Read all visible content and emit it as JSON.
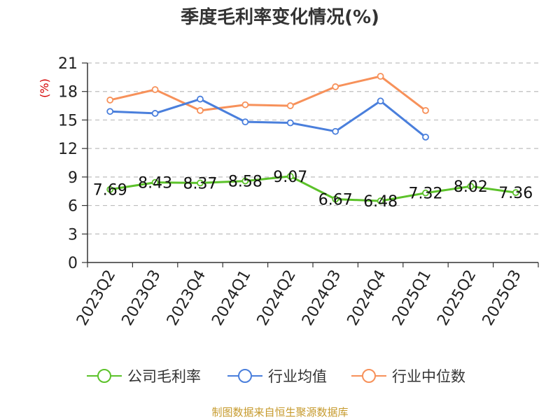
{
  "title": "季度毛利率变化情况(%)",
  "source": "制图数据来自恒生聚源数据库",
  "y_unit": "(%)",
  "chart_data": {
    "type": "line",
    "title": "季度毛利率变化情况(%)",
    "xlabel": "",
    "ylabel": "(%)",
    "ylim": [
      0,
      21
    ],
    "yticks": [
      0,
      3,
      6,
      9,
      12,
      15,
      18,
      21
    ],
    "grid": true,
    "legend_position": "bottom",
    "categories": [
      "2023Q2",
      "2023Q3",
      "2023Q4",
      "2024Q1",
      "2024Q2",
      "2024Q3",
      "2024Q4",
      "2025Q1",
      "2025Q2",
      "2025Q3"
    ],
    "series": [
      {
        "name": "公司毛利率",
        "color": "#5cc22a",
        "values": [
          7.69,
          8.43,
          8.37,
          8.58,
          9.07,
          6.67,
          6.48,
          7.32,
          8.02,
          7.36
        ],
        "labels": [
          "7.69",
          "8.43",
          "8.37",
          "8.58",
          "9.07",
          "6.67",
          "6.48",
          "7.32",
          "8.02",
          "7.36"
        ]
      },
      {
        "name": "行业均值",
        "color": "#4a7fdc",
        "values": [
          15.9,
          15.7,
          17.2,
          14.8,
          14.7,
          13.8,
          17.0,
          13.2,
          null,
          null
        ]
      },
      {
        "name": "行业中位数",
        "color": "#f7915a",
        "values": [
          17.1,
          18.2,
          16.0,
          16.6,
          16.5,
          18.5,
          19.6,
          16.0,
          null,
          null
        ]
      }
    ]
  }
}
